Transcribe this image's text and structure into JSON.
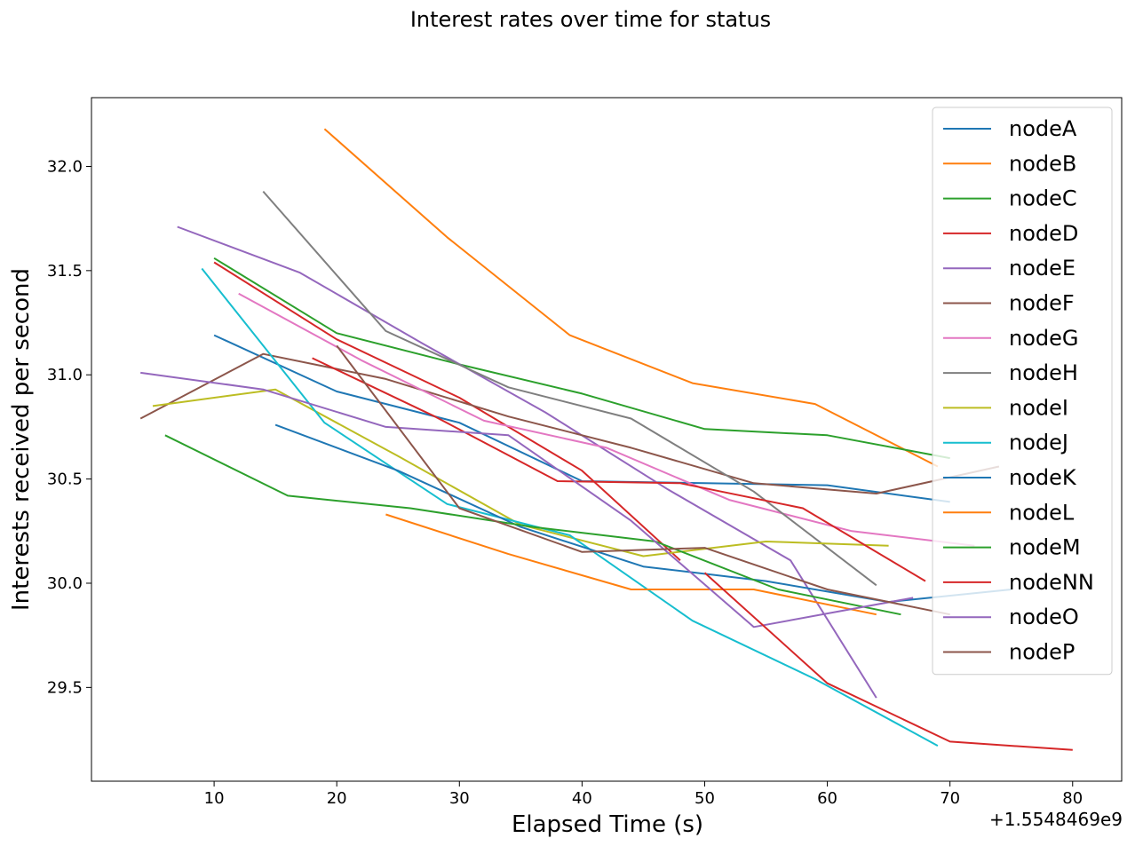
{
  "chart_data": {
    "type": "line",
    "title": "Interest rates over time for status",
    "xlabel": "Elapsed Time (s)",
    "ylabel": "Interests received per second",
    "x_offset_label": "+1.5548469e9",
    "xlim": [
      0,
      84
    ],
    "ylim": [
      29.05,
      32.33
    ],
    "x_ticks": [
      10,
      20,
      30,
      40,
      50,
      60,
      70,
      80
    ],
    "y_ticks": [
      29.5,
      30.0,
      30.5,
      31.0,
      31.5,
      32.0
    ],
    "x_tick_labels": [
      "10",
      "20",
      "30",
      "40",
      "50",
      "60",
      "70",
      "80"
    ],
    "y_tick_labels": [
      "29.5",
      "30.0",
      "30.5",
      "31.0",
      "31.5",
      "32.0"
    ],
    "grid": false,
    "legend_position": "top-right",
    "series": [
      {
        "name": "nodeA",
        "color": "#1f77b4",
        "x": [
          10,
          20,
          30,
          40,
          50,
          60,
          70
        ],
        "y": [
          31.19,
          30.92,
          30.77,
          30.49,
          30.48,
          30.47,
          30.39
        ]
      },
      {
        "name": "nodeB",
        "color": "#ff7f0e",
        "x": [
          19,
          29,
          39,
          49,
          59,
          69
        ],
        "y": [
          32.18,
          31.66,
          31.19,
          30.96,
          30.86,
          30.56
        ]
      },
      {
        "name": "nodeC",
        "color": "#2ca02c",
        "x": [
          10,
          20,
          30,
          40,
          50,
          60,
          70
        ],
        "y": [
          31.56,
          31.2,
          31.05,
          30.91,
          30.74,
          30.71,
          30.6
        ]
      },
      {
        "name": "nodeD",
        "color": "#d62728",
        "x": [
          10,
          20,
          30,
          40,
          48
        ],
        "y": [
          31.54,
          31.17,
          30.89,
          30.54,
          30.11
        ]
      },
      {
        "name": "nodeE",
        "color": "#9467bd",
        "x": [
          7,
          17,
          27,
          37,
          47,
          57,
          64
        ],
        "y": [
          31.71,
          31.49,
          31.15,
          30.82,
          30.45,
          30.11,
          29.45
        ]
      },
      {
        "name": "nodeF",
        "color": "#8c564b",
        "x": [
          4,
          14,
          24,
          34,
          44,
          54,
          64,
          74
        ],
        "y": [
          30.79,
          31.1,
          30.98,
          30.8,
          30.65,
          30.48,
          30.43,
          30.56
        ]
      },
      {
        "name": "nodeG",
        "color": "#e377c2",
        "x": [
          12,
          22,
          32,
          42,
          52,
          62,
          72
        ],
        "y": [
          31.39,
          31.07,
          30.78,
          30.65,
          30.4,
          30.25,
          30.18
        ]
      },
      {
        "name": "nodeH",
        "color": "#7f7f7f",
        "x": [
          14,
          24,
          34,
          44,
          54,
          64
        ],
        "y": [
          31.88,
          31.21,
          30.94,
          30.79,
          30.44,
          29.99
        ]
      },
      {
        "name": "nodeI",
        "color": "#bcbd22",
        "x": [
          5,
          15,
          25,
          35,
          45,
          55,
          65
        ],
        "y": [
          30.85,
          30.93,
          30.61,
          30.28,
          30.13,
          30.2,
          30.18
        ]
      },
      {
        "name": "nodeJ",
        "color": "#17becf",
        "x": [
          9,
          19,
          29,
          39,
          49,
          59,
          69
        ],
        "y": [
          31.51,
          30.77,
          30.38,
          30.23,
          29.82,
          29.54,
          29.22
        ]
      },
      {
        "name": "nodeK",
        "color": "#1f77b4",
        "x": [
          15,
          25,
          35,
          45,
          55,
          65,
          75
        ],
        "y": [
          30.76,
          30.54,
          30.27,
          30.08,
          30.01,
          29.91,
          29.97
        ]
      },
      {
        "name": "nodeL",
        "color": "#ff7f0e",
        "x": [
          24,
          34,
          44,
          54,
          64
        ],
        "y": [
          30.33,
          30.14,
          29.97,
          29.97,
          29.85
        ]
      },
      {
        "name": "nodeM",
        "color": "#2ca02c",
        "x": [
          6,
          16,
          26,
          36,
          46,
          56,
          66
        ],
        "y": [
          30.71,
          30.42,
          30.36,
          30.27,
          30.2,
          29.97,
          29.85
        ]
      },
      {
        "name": "nodeNN",
        "color": "#d62728",
        "x": [
          18,
          28,
          38,
          48,
          58,
          68
        ],
        "y": [
          31.08,
          30.8,
          30.49,
          30.48,
          30.36,
          30.01
        ]
      },
      {
        "name": "nodeO",
        "color": "#9467bd",
        "x": [
          4,
          14,
          24,
          34,
          44,
          54,
          67
        ],
        "y": [
          31.01,
          30.93,
          30.75,
          30.71,
          30.3,
          29.79,
          29.93
        ]
      },
      {
        "name": "nodeP",
        "color": "#8c564b",
        "x": [
          20,
          30,
          40,
          50,
          60,
          70
        ],
        "y": [
          31.14,
          30.36,
          30.15,
          30.17,
          29.97,
          29.85
        ]
      },
      {
        "name": "",
        "color": "#d62728",
        "x": [
          50,
          60,
          70,
          80
        ],
        "y": [
          30.05,
          29.52,
          29.24,
          29.2
        ]
      }
    ]
  }
}
